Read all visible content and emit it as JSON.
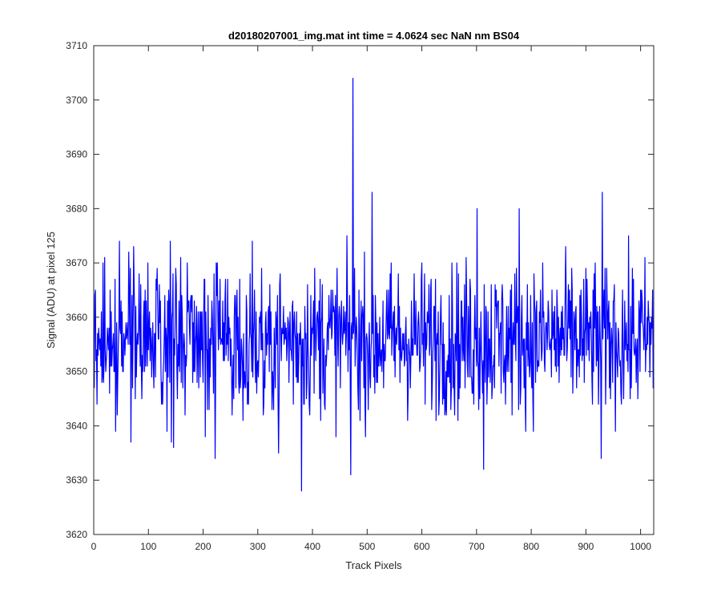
{
  "figure": {
    "background": "#ffffff"
  },
  "chart_data": {
    "type": "line",
    "title": "d20180207001_img.mat int time = 4.0624 sec  NaN nm BS04",
    "xlabel": "Track Pixels",
    "ylabel": "Signal (ADU) at pixel 125",
    "xlim": [
      0,
      1024
    ],
    "ylim": [
      3620,
      3710
    ],
    "xticks": [
      0,
      100,
      200,
      300,
      400,
      500,
      600,
      700,
      800,
      900,
      1000
    ],
    "yticks": [
      3620,
      3630,
      3640,
      3650,
      3660,
      3670,
      3680,
      3690,
      3700,
      3710
    ],
    "grid": false,
    "legend": "none",
    "series": [
      {
        "color": "#0000ff",
        "note_points": "approximate trace: 1024 samples, mean ~3656 ADU, noise ~±7; notable extremes listed in features",
        "n_points": 1024,
        "baseline": 3656,
        "features": [
          {
            "x": 473,
            "y": 3704
          },
          {
            "x": 508,
            "y": 3683
          },
          {
            "x": 929,
            "y": 3683
          },
          {
            "x": 777,
            "y": 3680
          },
          {
            "x": 700,
            "y": 3680
          },
          {
            "x": 379,
            "y": 3628
          },
          {
            "x": 469,
            "y": 3631
          },
          {
            "x": 712,
            "y": 3632
          },
          {
            "x": 927,
            "y": 3634
          },
          {
            "x": 221,
            "y": 3634
          },
          {
            "x": 145,
            "y": 3636
          },
          {
            "x": 337,
            "y": 3635
          },
          {
            "x": 67,
            "y": 3637
          }
        ]
      }
    ]
  }
}
